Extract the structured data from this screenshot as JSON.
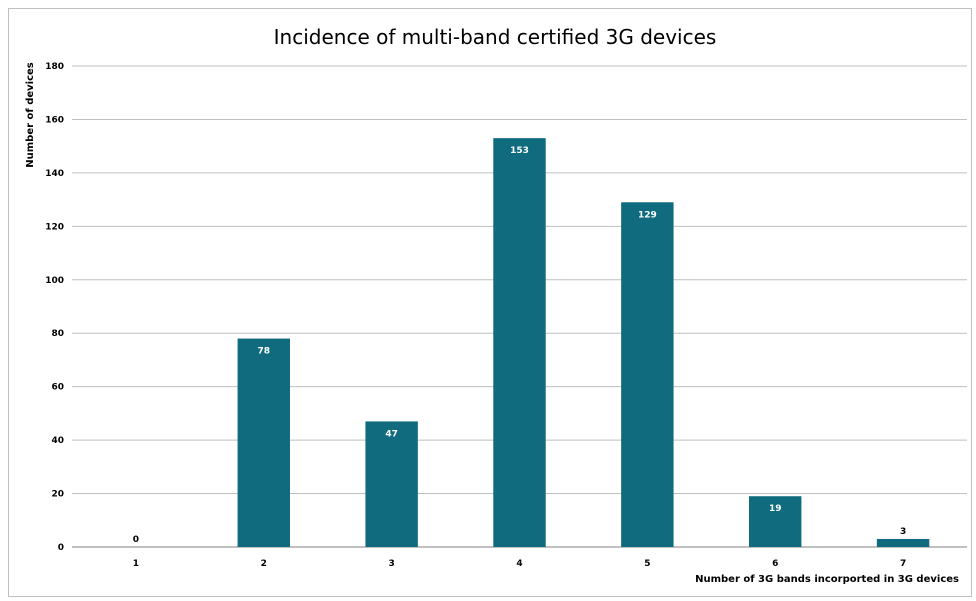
{
  "chart_data": {
    "type": "bar",
    "title": "Incidence of multi-band certified 3G devices",
    "xlabel": "Number of 3G bands incorported in 3G devices",
    "ylabel": "Number of devices",
    "categories": [
      "1",
      "2",
      "3",
      "4",
      "5",
      "6",
      "7"
    ],
    "values": [
      0,
      78,
      47,
      153,
      129,
      19,
      3
    ],
    "data_labels": [
      "0",
      "78",
      "47",
      "153",
      "129",
      "19",
      "3"
    ],
    "ylim": [
      0,
      180
    ],
    "yticks": [
      0,
      20,
      40,
      60,
      80,
      100,
      120,
      140,
      160,
      180
    ],
    "ytick_labels": [
      "0",
      "20",
      "40",
      "60",
      "80",
      "100",
      "120",
      "140",
      "160",
      "180"
    ],
    "grid": true,
    "legend": "none",
    "bar_color": "#0f6b7d",
    "grid_color": "#bfbfbf"
  }
}
